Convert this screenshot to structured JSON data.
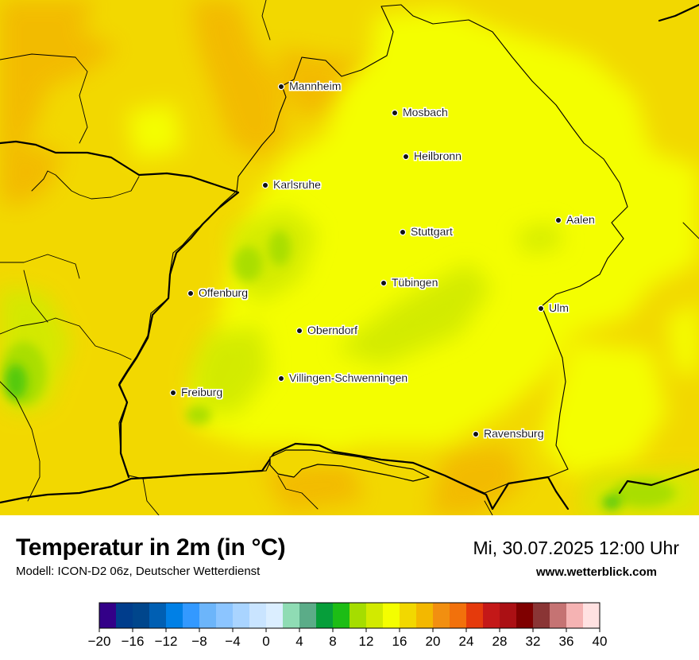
{
  "header": {
    "title": "Temperatur in 2m (in °C)",
    "model": "Modell: ICON-D2 06z, Deutscher Wetterdienst",
    "datetime": "Mi, 30.07.2025 12:00 Uhr",
    "site": "www.wetterblick.com"
  },
  "cities": [
    {
      "name": "Mannheim"
    },
    {
      "name": "Mosbach"
    },
    {
      "name": "Heilbronn"
    },
    {
      "name": "Karlsruhe"
    },
    {
      "name": "Aalen"
    },
    {
      "name": "Stuttgart"
    },
    {
      "name": "Tübingen"
    },
    {
      "name": "Offenburg"
    },
    {
      "name": "Ulm"
    },
    {
      "name": "Oberndorf"
    },
    {
      "name": "Villingen-Schwenningen"
    },
    {
      "name": "Freiburg"
    },
    {
      "name": "Ravensburg"
    }
  ],
  "colorbar": {
    "min": -20,
    "max": 40,
    "step": 2,
    "tick_labels": [
      "−20",
      "−16",
      "−12",
      "−8",
      "−4",
      "0",
      "4",
      "8",
      "12",
      "16",
      "20",
      "24",
      "28",
      "32",
      "36",
      "40"
    ],
    "colors": [
      "#330088",
      "#003d8c",
      "#00468c",
      "#005fb3",
      "#0080e6",
      "#3399ff",
      "#6cb5fa",
      "#8cc5ff",
      "#a9d4ff",
      "#c9e4ff",
      "#dbeeff",
      "#8fdcb4",
      "#5bac88",
      "#069e3a",
      "#1dbd15",
      "#a5dd00",
      "#d2ea00",
      "#f4fe00",
      "#f2d800",
      "#f3b800",
      "#f28f10",
      "#f2710c",
      "#e53a0c",
      "#c41818",
      "#ab1014",
      "#7f0000",
      "#8a3535",
      "#c57373",
      "#f5b3b3",
      "#ffe1e1"
    ]
  }
}
